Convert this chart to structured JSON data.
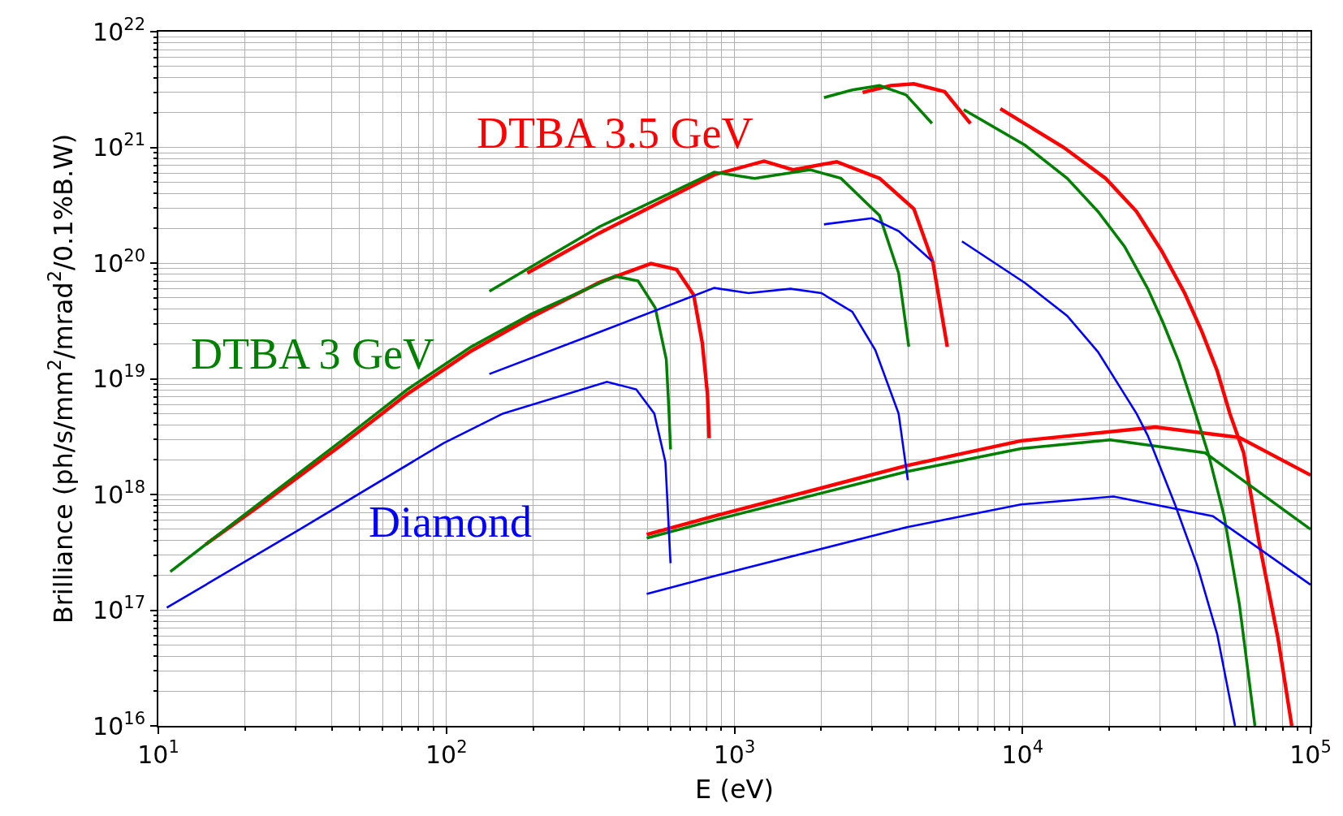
{
  "chart_data": {
    "type": "line",
    "xlabel": "E (eV)",
    "ylabel": "Brilliance (ph/s/mm$^{2}$/mrad$^{2}$/0.1%B.W)",
    "log": "xy",
    "grid": true,
    "legend": false,
    "line_style": "solid",
    "marker": "none",
    "xlim": [
      10,
      100000
    ],
    "ylim": [
      1e+16,
      1e+22
    ],
    "xticks": [
      {
        "value": 10,
        "label": "10$^{1}$"
      },
      {
        "value": 100,
        "label": "10$^{2}$"
      },
      {
        "value": 1000,
        "label": "10$^{3}$"
      },
      {
        "value": 10000,
        "label": "10$^{4}$"
      },
      {
        "value": 100000,
        "label": "10$^{5}$"
      }
    ],
    "yticks": [
      {
        "value": 1e+16,
        "label": "10$^{16}$"
      },
      {
        "value": 1e+17,
        "label": "10$^{17}$"
      },
      {
        "value": 1e+18,
        "label": "10$^{18}$"
      },
      {
        "value": 1e+19,
        "label": "10$^{19}$"
      },
      {
        "value": 1e+20,
        "label": "10$^{20}$"
      },
      {
        "value": 1e+21,
        "label": "10$^{21}$"
      },
      {
        "value": 1e+22,
        "label": "10$^{22}$"
      }
    ],
    "series": [
      {
        "name": "DTBA 3.5 GeV",
        "color": "#ff0000",
        "x": [
          14.6,
          22,
          43.6,
          73.3,
          122,
          197,
          340,
          513,
          630,
          722,
          773,
          806,
          817,
          null,
          191,
          340,
          851,
          1267,
          1598,
          2265,
          3191,
          4198,
          4886,
          5483,
          null,
          2786,
          3491,
          4198,
          5370,
          6597,
          null,
          8378,
          13900,
          19440,
          24890,
          30390,
          36560,
          41900,
          47420,
          52480,
          58610,
          66370,
          77120,
          86100,
          null,
          496,
          851,
          3945,
          9890,
          28960,
          56640,
          100000
        ],
        "values": [
          3.7e+17,
          7.7e+17,
          2.72e+18,
          7.4e+18,
          1.74e+19,
          3.4e+19,
          6.8e+19,
          9.9e+19,
          8.8e+19,
          5.3e+19,
          2.06e+19,
          7.4e+18,
          3.06e+18,
          null,
          8.2e+19,
          1.82e+20,
          5.8e+20,
          7.6e+20,
          6.4e+20,
          7.5e+20,
          5.4e+20,
          2.94e+20,
          1.02e+20,
          1.89e+19,
          null,
          2.98e+21,
          3.42e+21,
          3.54e+21,
          3.03e+21,
          1.61e+21,
          null,
          2.16e+21,
          1e+21,
          5.4e+20,
          2.79e+20,
          1.28e+20,
          5.5e+19,
          2.58e+19,
          1.17e+19,
          5e+18,
          2.29e+18,
          3.8e+17,
          5.7e+16,
          1e+16,
          null,
          4.5e+17,
          6.5e+17,
          1.77e+18,
          2.91e+18,
          3.82e+18,
          3.11e+18,
          1.47e+18
        ]
      },
      {
        "name": "DTBA 3 GeV",
        "color": "#008000",
        "x": [
          11,
          22,
          43.6,
          73.3,
          122,
          197,
          385,
          463,
          531,
          580,
          593,
          600,
          null,
          141,
          340,
          851,
          1175,
          1833,
          2344,
          3191,
          3715,
          4030,
          null,
          2046,
          2565,
          3191,
          3945,
          4853,
          null,
          6252,
          10230,
          14290,
          18280,
          22620,
          27230,
          30770,
          34830,
          39920,
          44260,
          50120,
          56640,
          64120,
          null,
          496,
          851,
          3945,
          9890,
          20140,
          43050,
          100000
        ],
        "values": [
          2.15e+17,
          8.1e+17,
          2.96e+18,
          8.1e+18,
          1.89e+19,
          3.62e+19,
          7.7e+19,
          7e+19,
          4.1e+19,
          1.47e+19,
          5e+18,
          2.45e+18,
          null,
          5.7e+19,
          2.06e+20,
          6.1e+20,
          5.4e+20,
          6.4e+20,
          5.4e+20,
          2.57e+20,
          8.2e+19,
          1.89e+19,
          null,
          2.69e+21,
          3.14e+21,
          3.42e+21,
          2.84e+21,
          1.61e+21,
          null,
          2.12e+21,
          1.04e+21,
          5.4e+20,
          2.79e+20,
          1.39e+20,
          6e+19,
          3.05e+19,
          1.42e+19,
          5e+18,
          2.21e+18,
          6.5e+17,
          1.12e+17,
          1e+16,
          null,
          4.2e+17,
          6e+17,
          1.57e+18,
          2.49e+18,
          2.96e+18,
          2.29e+18,
          5e+17
        ]
      },
      {
        "name": "Diamond",
        "color": "#0000ff",
        "x": [
          10.7,
          31,
          97.7,
          157,
          361,
          456,
          527,
          576,
          600,
          null,
          141,
          340,
          851,
          1120,
          1566,
          2004,
          2565,
          3083,
          3715,
          4000,
          null,
          2046,
          3000,
          3715,
          4853,
          null,
          6166,
          10230,
          14290,
          18280,
          22330,
          24890,
          27230,
          33900,
          40460,
          47420,
          54700,
          null,
          496,
          851,
          3945,
          9890,
          20700,
          45810,
          100000
        ],
        "values": [
          1.05e+17,
          5e+17,
          2.77e+18,
          5e+18,
          9.4e+18,
          8.1e+18,
          5e+18,
          1.9e+18,
          2.55e+17,
          null,
          1.1e+19,
          2.53e+19,
          6.1e+19,
          5.5e+19,
          6e+19,
          5.5e+19,
          3.8e+19,
          1.77e+19,
          5e+18,
          1.33e+18,
          null,
          2.16e+20,
          2.44e+20,
          1.89e+20,
          1.04e+20,
          null,
          1.54e+20,
          6.7e+19,
          3.5e+19,
          1.71e+19,
          7.7e+18,
          5e+18,
          3.22e+18,
          8.1e+17,
          2.42e+17,
          6.2e+16,
          1e+16,
          null,
          1.38e+17,
          1.97e+17,
          5.2e+17,
          8.2e+17,
          9.6e+17,
          6.5e+17,
          1.66e+17
        ]
      }
    ]
  }
}
